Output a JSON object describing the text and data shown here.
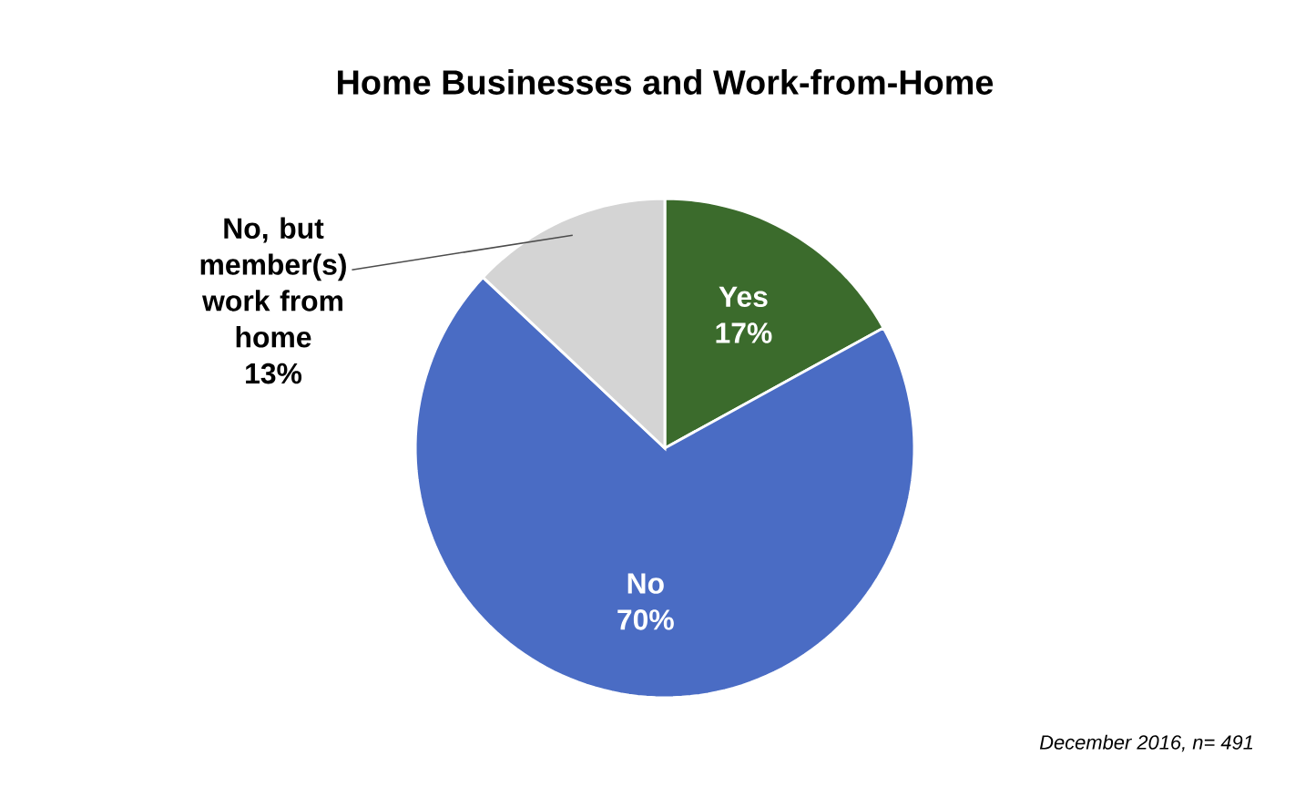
{
  "chart_data": {
    "type": "pie",
    "title": "Home Businesses and Work-from-Home",
    "categories": [
      "Yes",
      "No",
      "No, but member(s) work from home"
    ],
    "values": [
      17,
      70,
      13
    ],
    "value_labels": [
      "17%",
      "70%",
      "13%"
    ],
    "colors": [
      "#3b6b2c",
      "#4a6cc4",
      "#d4d4d4"
    ],
    "annotations": [
      "December 2016, n= 491"
    ]
  }
}
